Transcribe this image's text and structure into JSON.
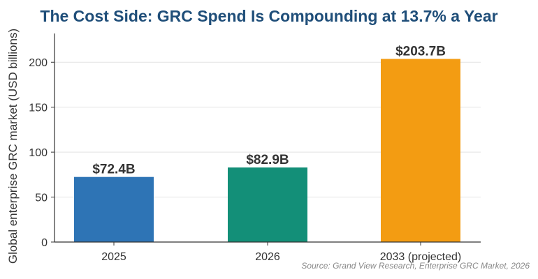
{
  "chart_data": {
    "type": "bar",
    "title": "The Cost Side: GRC Spend Is Compounding at 13.7% a Year",
    "xlabel": "",
    "ylabel": "Global enterprise GRC market (USD billions)",
    "categories": [
      "2025",
      "2026",
      "2033 (projected)"
    ],
    "values": [
      72.4,
      82.9,
      203.7
    ],
    "data_labels": [
      "$72.4B",
      "$82.9B",
      "$203.7B"
    ],
    "bar_colors": [
      "#2e74b5",
      "#138f78",
      "#f39c12"
    ],
    "ylim": [
      0,
      232
    ],
    "yticks": [
      0,
      50,
      100,
      150,
      200
    ],
    "grid": true,
    "source": "Source: Grand View Research, Enterprise GRC Market, 2026",
    "title_color": "#1f4e79"
  }
}
